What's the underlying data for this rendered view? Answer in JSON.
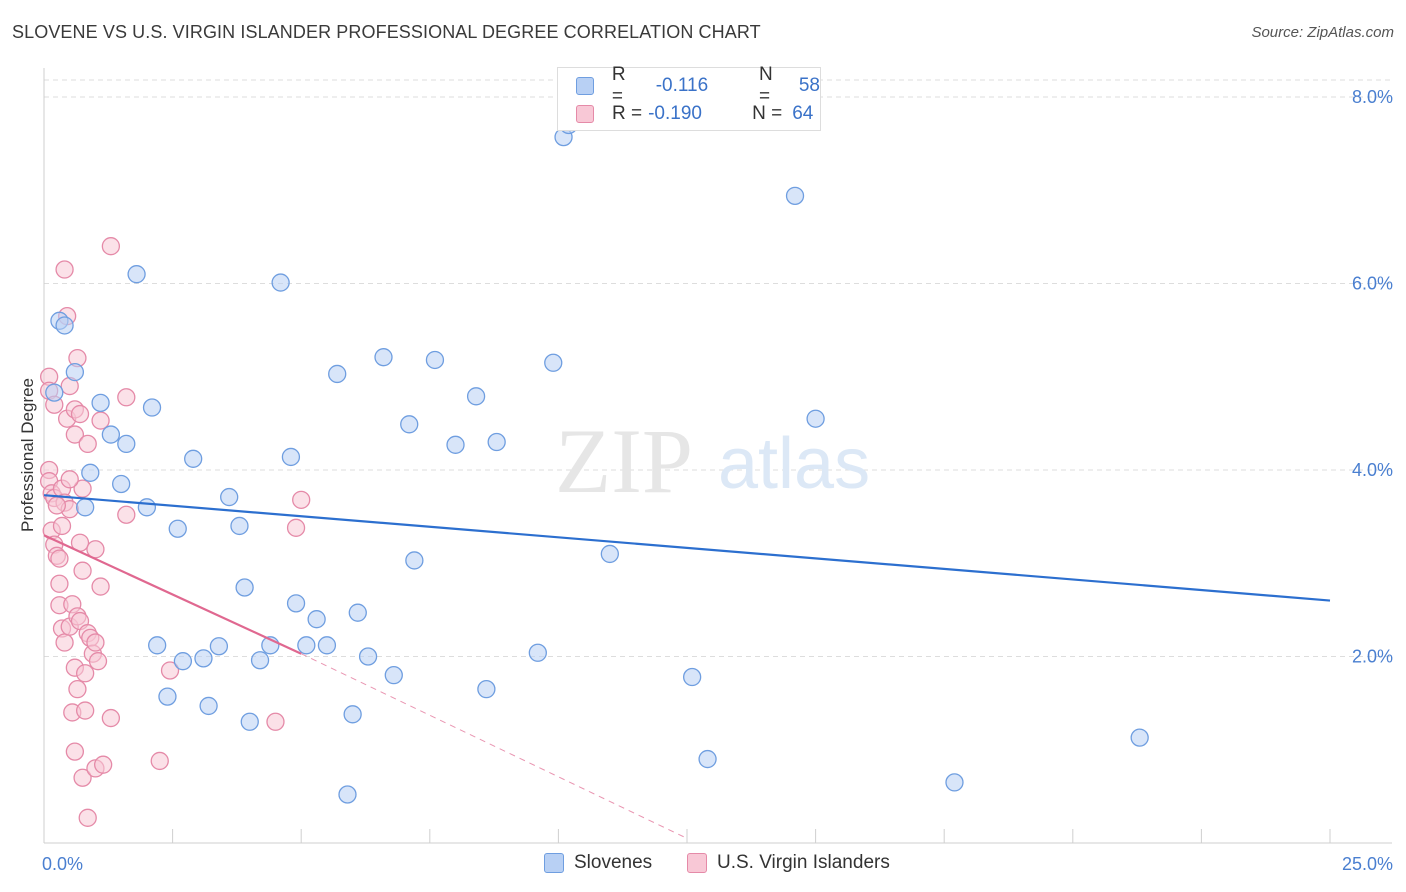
{
  "title": "SLOVENE VS U.S. VIRGIN ISLANDER PROFESSIONAL DEGREE CORRELATION CHART",
  "source": "Source: ZipAtlas.com",
  "watermark": {
    "zip": "ZIP",
    "atlas": "atlas"
  },
  "colors": {
    "blue_fill": "#b8d0f4",
    "blue_stroke": "#6f9ee0",
    "blue_line": "#2c6fcf",
    "pink_fill": "#f8c8d6",
    "pink_stroke": "#e58aa8",
    "pink_line": "#e06890",
    "tick_text": "#4a7fd0",
    "grid": "#dddddd"
  },
  "legend": {
    "items": [
      {
        "r_label": "R =",
        "r_value": "-0.116",
        "n_label": "N =",
        "n_value": "58"
      },
      {
        "r_label": "R =",
        "r_value": "-0.190",
        "n_label": "N =",
        "n_value": "64"
      }
    ]
  },
  "bottom_legend": [
    "Slovenes",
    "U.S. Virgin Islanders"
  ],
  "chart_data": {
    "type": "scatter",
    "title": "SLOVENE VS U.S. VIRGIN ISLANDER PROFESSIONAL DEGREE CORRELATION CHART",
    "xlabel": "",
    "ylabel": "Professional Degree",
    "xlim": [
      0,
      25
    ],
    "ylim": [
      0,
      8
    ],
    "x_tick_labels": [
      "0.0%",
      "25.0%"
    ],
    "y_ticks": [
      2,
      4,
      6,
      8
    ],
    "y_tick_labels": [
      "2.0%",
      "4.0%",
      "6.0%",
      "8.0%"
    ],
    "grid": true,
    "legend_position": "top-center",
    "series": [
      {
        "name": "Slovenes",
        "r": -0.116,
        "n": 58,
        "trend": {
          "x": [
            0,
            25
          ],
          "y": [
            3.73,
            2.6
          ]
        },
        "points": [
          [
            0.2,
            4.83
          ],
          [
            0.3,
            5.6
          ],
          [
            0.4,
            5.55
          ],
          [
            0.6,
            5.05
          ],
          [
            0.9,
            3.97
          ],
          [
            0.8,
            3.6
          ],
          [
            1.1,
            4.72
          ],
          [
            1.3,
            4.38
          ],
          [
            1.5,
            3.85
          ],
          [
            1.6,
            4.28
          ],
          [
            1.8,
            6.1
          ],
          [
            2.0,
            3.6
          ],
          [
            2.1,
            4.67
          ],
          [
            2.2,
            2.12
          ],
          [
            2.4,
            1.57
          ],
          [
            2.6,
            3.37
          ],
          [
            2.7,
            1.95
          ],
          [
            2.9,
            4.12
          ],
          [
            3.1,
            1.98
          ],
          [
            3.2,
            1.47
          ],
          [
            3.4,
            2.11
          ],
          [
            3.6,
            3.71
          ],
          [
            3.8,
            3.4
          ],
          [
            3.9,
            2.74
          ],
          [
            4.0,
            1.3
          ],
          [
            4.2,
            1.96
          ],
          [
            4.4,
            2.12
          ],
          [
            4.6,
            6.01
          ],
          [
            4.8,
            4.14
          ],
          [
            4.9,
            2.57
          ],
          [
            5.1,
            2.12
          ],
          [
            5.3,
            2.4
          ],
          [
            5.5,
            2.12
          ],
          [
            5.7,
            5.03
          ],
          [
            5.9,
            0.52
          ],
          [
            6.0,
            1.38
          ],
          [
            6.1,
            2.47
          ],
          [
            6.3,
            2.0
          ],
          [
            6.6,
            5.21
          ],
          [
            6.8,
            1.8
          ],
          [
            7.1,
            4.49
          ],
          [
            7.2,
            3.03
          ],
          [
            7.6,
            5.18
          ],
          [
            8.0,
            4.27
          ],
          [
            8.4,
            4.79
          ],
          [
            8.6,
            1.65
          ],
          [
            8.8,
            4.3
          ],
          [
            9.6,
            2.04
          ],
          [
            9.9,
            5.15
          ],
          [
            10.1,
            7.57
          ],
          [
            10.2,
            7.7
          ],
          [
            11.0,
            3.1
          ],
          [
            12.6,
            1.78
          ],
          [
            12.9,
            0.9
          ],
          [
            14.6,
            6.94
          ],
          [
            15.0,
            4.55
          ],
          [
            17.7,
            0.65
          ],
          [
            21.3,
            1.13
          ]
        ]
      },
      {
        "name": "U.S. Virgin Islanders",
        "r": -0.19,
        "n": 64,
        "trend": {
          "x": [
            0,
            5.0
          ],
          "y": [
            3.3,
            2.03
          ]
        },
        "trend_extension": {
          "x": [
            5.0,
            12.5
          ],
          "y": [
            2.03,
            0.05
          ]
        },
        "points": [
          [
            0.1,
            5.0
          ],
          [
            0.1,
            4.85
          ],
          [
            0.1,
            4.0
          ],
          [
            0.1,
            3.88
          ],
          [
            0.15,
            3.75
          ],
          [
            0.15,
            3.35
          ],
          [
            0.2,
            4.7
          ],
          [
            0.2,
            3.7
          ],
          [
            0.2,
            3.2
          ],
          [
            0.25,
            3.08
          ],
          [
            0.3,
            3.05
          ],
          [
            0.3,
            2.78
          ],
          [
            0.3,
            2.55
          ],
          [
            0.35,
            3.8
          ],
          [
            0.35,
            3.4
          ],
          [
            0.35,
            2.3
          ],
          [
            0.4,
            6.15
          ],
          [
            0.4,
            3.65
          ],
          [
            0.4,
            2.15
          ],
          [
            0.45,
            5.65
          ],
          [
            0.45,
            4.55
          ],
          [
            0.5,
            4.9
          ],
          [
            0.5,
            3.58
          ],
          [
            0.5,
            2.32
          ],
          [
            0.55,
            2.56
          ],
          [
            0.55,
            1.4
          ],
          [
            0.6,
            4.65
          ],
          [
            0.6,
            4.38
          ],
          [
            0.6,
            1.88
          ],
          [
            0.6,
            0.98
          ],
          [
            0.65,
            5.2
          ],
          [
            0.65,
            2.43
          ],
          [
            0.65,
            1.65
          ],
          [
            0.7,
            4.6
          ],
          [
            0.7,
            3.22
          ],
          [
            0.7,
            2.38
          ],
          [
            0.75,
            3.8
          ],
          [
            0.75,
            2.92
          ],
          [
            0.75,
            0.7
          ],
          [
            0.8,
            1.82
          ],
          [
            0.8,
            1.42
          ],
          [
            0.85,
            4.28
          ],
          [
            0.85,
            2.25
          ],
          [
            0.85,
            0.27
          ],
          [
            0.9,
            2.2
          ],
          [
            0.95,
            2.03
          ],
          [
            1.0,
            3.15
          ],
          [
            1.0,
            2.15
          ],
          [
            1.0,
            0.8
          ],
          [
            1.05,
            1.95
          ],
          [
            1.1,
            4.53
          ],
          [
            1.1,
            2.75
          ],
          [
            1.15,
            0.84
          ],
          [
            1.3,
            6.4
          ],
          [
            1.3,
            1.34
          ],
          [
            1.6,
            4.78
          ],
          [
            1.6,
            3.52
          ],
          [
            2.25,
            0.88
          ],
          [
            2.45,
            1.85
          ],
          [
            4.5,
            1.3
          ],
          [
            5.0,
            3.68
          ],
          [
            4.9,
            3.38
          ],
          [
            0.25,
            3.62
          ],
          [
            0.5,
            3.9
          ]
        ]
      }
    ]
  }
}
